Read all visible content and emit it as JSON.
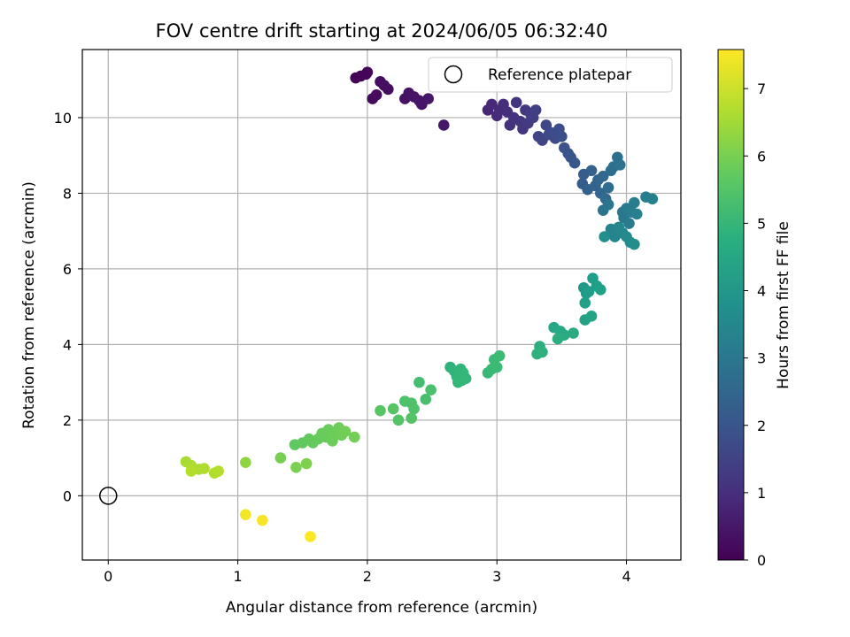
{
  "chart_data": {
    "type": "scatter",
    "title": "FOV centre drift starting at 2024/06/05 06:32:40",
    "xlabel": "Angular distance from reference (arcmin)",
    "ylabel": "Rotation from reference (arcmin)",
    "xlim": [
      -0.2,
      4.42
    ],
    "ylim": [
      -1.7,
      11.8
    ],
    "xticks": [
      0,
      1,
      2,
      3,
      4
    ],
    "yticks": [
      0,
      2,
      4,
      6,
      8,
      10
    ],
    "grid": true,
    "legend": {
      "location": "upper right",
      "entries": [
        "Reference platepar"
      ]
    },
    "reference_point": {
      "x": 0,
      "y": 0
    },
    "colorbar": {
      "label": "Hours from first FF file",
      "colormap": "viridis",
      "range": [
        0,
        7.58
      ],
      "ticks": [
        0,
        1,
        2,
        3,
        4,
        5,
        6,
        7
      ]
    },
    "points": [
      [
        1.91,
        11.05,
        0.05
      ],
      [
        1.95,
        11.1,
        0.07
      ],
      [
        1.99,
        11.15,
        0.09
      ],
      [
        2.0,
        11.2,
        0.1
      ],
      [
        2.04,
        10.5,
        0.2
      ],
      [
        2.07,
        10.6,
        0.22
      ],
      [
        2.1,
        10.95,
        0.25
      ],
      [
        2.13,
        10.85,
        0.27
      ],
      [
        2.16,
        10.75,
        0.3
      ],
      [
        2.29,
        10.5,
        0.35
      ],
      [
        2.32,
        10.65,
        0.37
      ],
      [
        2.36,
        10.55,
        0.4
      ],
      [
        2.42,
        10.35,
        0.42
      ],
      [
        2.4,
        10.45,
        0.44
      ],
      [
        2.47,
        10.5,
        0.46
      ],
      [
        2.59,
        9.8,
        0.5
      ],
      [
        2.93,
        10.2,
        0.8
      ],
      [
        2.96,
        10.35,
        0.85
      ],
      [
        3.0,
        10.05,
        0.9
      ],
      [
        3.02,
        10.2,
        0.95
      ],
      [
        3.05,
        10.35,
        1.0
      ],
      [
        3.08,
        10.15,
        1.05
      ],
      [
        3.1,
        9.8,
        1.1
      ],
      [
        3.13,
        10.0,
        1.12
      ],
      [
        3.15,
        10.4,
        1.15
      ],
      [
        3.18,
        9.9,
        1.18
      ],
      [
        3.2,
        9.7,
        1.2
      ],
      [
        3.22,
        10.2,
        1.25
      ],
      [
        3.24,
        9.85,
        1.3
      ],
      [
        3.26,
        10.1,
        1.35
      ],
      [
        3.28,
        10.0,
        1.38
      ],
      [
        3.3,
        10.2,
        1.4
      ],
      [
        3.32,
        9.5,
        1.5
      ],
      [
        3.35,
        9.4,
        1.55
      ],
      [
        3.38,
        9.8,
        1.6
      ],
      [
        3.4,
        9.55,
        1.65
      ],
      [
        3.42,
        9.6,
        1.7
      ],
      [
        3.45,
        9.45,
        1.75
      ],
      [
        3.48,
        9.7,
        1.8
      ],
      [
        3.5,
        9.5,
        1.85
      ],
      [
        3.52,
        9.2,
        1.9
      ],
      [
        3.55,
        9.05,
        1.95
      ],
      [
        3.57,
        8.95,
        2.0
      ],
      [
        3.6,
        8.8,
        2.05
      ],
      [
        3.66,
        8.25,
        2.2
      ],
      [
        3.67,
        8.5,
        2.25
      ],
      [
        3.7,
        8.1,
        2.3
      ],
      [
        3.73,
        8.6,
        2.35
      ],
      [
        3.76,
        8.2,
        2.4
      ],
      [
        3.78,
        8.35,
        2.45
      ],
      [
        3.8,
        8.0,
        2.5
      ],
      [
        3.82,
        8.45,
        2.55
      ],
      [
        3.84,
        7.85,
        2.6
      ],
      [
        3.86,
        8.15,
        2.65
      ],
      [
        3.88,
        8.6,
        2.7
      ],
      [
        3.9,
        8.7,
        2.75
      ],
      [
        3.93,
        8.95,
        2.8
      ],
      [
        3.95,
        8.75,
        2.85
      ],
      [
        3.82,
        7.55,
        2.9
      ],
      [
        3.86,
        7.7,
        2.95
      ],
      [
        3.97,
        7.5,
        3.0
      ],
      [
        3.98,
        7.35,
        3.05
      ],
      [
        4.0,
        7.6,
        3.1
      ],
      [
        4.02,
        7.2,
        3.15
      ],
      [
        4.04,
        7.5,
        3.2
      ],
      [
        4.06,
        7.75,
        3.25
      ],
      [
        4.08,
        7.45,
        3.3
      ],
      [
        3.88,
        7.05,
        3.4
      ],
      [
        3.91,
        6.85,
        3.45
      ],
      [
        3.94,
        7.1,
        3.5
      ],
      [
        3.97,
        6.95,
        3.55
      ],
      [
        4.0,
        6.85,
        3.6
      ],
      [
        4.03,
        6.7,
        3.65
      ],
      [
        4.06,
        6.65,
        3.7
      ],
      [
        3.83,
        6.85,
        3.75
      ],
      [
        4.15,
        7.9,
        3.25
      ],
      [
        4.2,
        7.85,
        3.3
      ],
      [
        3.67,
        5.5,
        4.05
      ],
      [
        3.69,
        5.35,
        4.1
      ],
      [
        3.71,
        5.4,
        4.15
      ],
      [
        3.74,
        5.75,
        4.2
      ],
      [
        3.77,
        5.55,
        4.25
      ],
      [
        3.8,
        5.45,
        4.28
      ],
      [
        3.68,
        5.1,
        4.3
      ],
      [
        3.68,
        4.65,
        4.35
      ],
      [
        3.73,
        4.75,
        4.4
      ],
      [
        3.44,
        4.45,
        4.5
      ],
      [
        3.49,
        4.35,
        4.55
      ],
      [
        3.52,
        4.25,
        4.6
      ],
      [
        3.59,
        4.3,
        4.65
      ],
      [
        3.47,
        4.15,
        4.7
      ],
      [
        3.33,
        3.95,
        4.75
      ],
      [
        3.35,
        3.8,
        4.8
      ],
      [
        3.31,
        3.75,
        4.82
      ],
      [
        2.64,
        3.4,
        4.9
      ],
      [
        2.67,
        3.3,
        4.92
      ],
      [
        2.69,
        3.15,
        4.95
      ],
      [
        2.72,
        3.35,
        4.98
      ],
      [
        2.74,
        3.25,
        5.0
      ],
      [
        2.76,
        3.1,
        5.02
      ],
      [
        2.7,
        3.0,
        5.04
      ],
      [
        2.73,
        3.05,
        5.06
      ],
      [
        2.93,
        3.25,
        5.1
      ],
      [
        2.96,
        3.35,
        5.12
      ],
      [
        2.98,
        3.6,
        5.14
      ],
      [
        3.0,
        3.4,
        5.16
      ],
      [
        3.02,
        3.7,
        5.18
      ],
      [
        2.4,
        3.0,
        5.3
      ],
      [
        2.45,
        2.55,
        5.35
      ],
      [
        2.49,
        2.8,
        5.38
      ],
      [
        2.29,
        2.5,
        5.42
      ],
      [
        2.34,
        2.45,
        5.45
      ],
      [
        2.36,
        2.3,
        5.48
      ],
      [
        2.34,
        2.05,
        5.5
      ],
      [
        2.24,
        2.0,
        5.52
      ],
      [
        2.2,
        2.3,
        5.55
      ],
      [
        2.1,
        2.25,
        5.58
      ],
      [
        1.44,
        1.35,
        5.7
      ],
      [
        1.5,
        1.4,
        5.72
      ],
      [
        1.55,
        1.5,
        5.74
      ],
      [
        1.58,
        1.4,
        5.76
      ],
      [
        1.62,
        1.5,
        5.78
      ],
      [
        1.65,
        1.65,
        5.8
      ],
      [
        1.68,
        1.55,
        5.82
      ],
      [
        1.7,
        1.75,
        5.84
      ],
      [
        1.73,
        1.45,
        5.86
      ],
      [
        1.75,
        1.6,
        5.88
      ],
      [
        1.78,
        1.8,
        5.9
      ],
      [
        1.8,
        1.6,
        5.92
      ],
      [
        1.83,
        1.7,
        5.94
      ],
      [
        1.9,
        1.55,
        5.96
      ],
      [
        1.33,
        1.0,
        6.0
      ],
      [
        1.45,
        0.75,
        6.05
      ],
      [
        1.53,
        0.85,
        6.1
      ],
      [
        1.06,
        0.88,
        6.3
      ],
      [
        0.6,
        0.9,
        6.6
      ],
      [
        0.64,
        0.8,
        6.62
      ],
      [
        0.7,
        0.7,
        6.65
      ],
      [
        0.74,
        0.72,
        6.68
      ],
      [
        0.82,
        0.6,
        6.7
      ],
      [
        0.85,
        0.65,
        6.72
      ],
      [
        0.64,
        0.65,
        6.75
      ],
      [
        1.06,
        -0.5,
        7.45
      ],
      [
        1.19,
        -0.65,
        7.5
      ],
      [
        1.56,
        -1.08,
        7.58
      ]
    ]
  }
}
